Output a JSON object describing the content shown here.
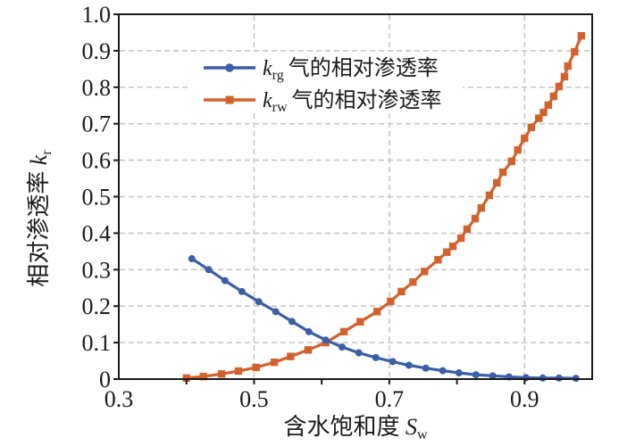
{
  "colors": {
    "gas_series": "#3A5FA8",
    "water_series": "#D2612C",
    "grid": "#c6c6c6",
    "axis": "#1a1a1a",
    "background": "#ffffff"
  },
  "legend": {
    "items": [
      {
        "k": "k",
        "sub": "rg",
        "label": "气的相对渗透率",
        "marker": "circle",
        "color": "#3A5FA8"
      },
      {
        "k": "k",
        "sub": "rw",
        "label": "气的相对渗透率",
        "marker": "square",
        "color": "#D2612C"
      }
    ]
  },
  "axes": {
    "x_title": {
      "text": "含水饱和度 ",
      "sym": "S",
      "sub": "w"
    },
    "y_title": {
      "text": "相对渗透率 ",
      "sym": "k",
      "sub": "r"
    }
  },
  "chart_data": {
    "type": "line",
    "title": "",
    "xlabel": "含水饱和度 Sw",
    "ylabel": "相对渗透率 kr",
    "xlim": [
      0.3,
      1.0
    ],
    "ylim": [
      0,
      1.0
    ],
    "xticks": {
      "labels": [
        "0.3",
        "0.5",
        "0.7",
        "0.9"
      ],
      "values": [
        0.3,
        0.5,
        0.7,
        0.9
      ]
    },
    "xtick_marks": [
      0.4,
      0.5,
      0.6,
      0.7,
      0.8,
      0.9
    ],
    "yticks": {
      "labels": [
        "1.0",
        "0.9",
        "0.8",
        "0.7",
        "0.6",
        "0.5",
        "0.4",
        "0.3",
        "0.2",
        "0.1",
        "0"
      ],
      "values": [
        1.0,
        0.9,
        0.8,
        0.7,
        0.6,
        0.5,
        0.4,
        0.3,
        0.2,
        0.1,
        0
      ]
    },
    "grid": {
      "style": "dashed",
      "x_values": [
        0.5,
        0.7,
        0.9
      ],
      "y_values": [
        0.1,
        0.2,
        0.3,
        0.4,
        0.5,
        0.6,
        0.7,
        0.8,
        0.9
      ]
    },
    "legend_position": "upper-left",
    "series": [
      {
        "name": "krg 气的相对渗透率",
        "marker": "circle",
        "color": "#3A5FA8",
        "x": [
          0.408,
          0.433,
          0.457,
          0.482,
          0.507,
          0.532,
          0.556,
          0.581,
          0.606,
          0.63,
          0.655,
          0.68,
          0.705,
          0.729,
          0.754,
          0.779,
          0.803,
          0.828,
          0.853,
          0.877,
          0.902,
          0.927,
          0.951,
          0.976
        ],
        "y": [
          0.33,
          0.3,
          0.27,
          0.24,
          0.212,
          0.185,
          0.158,
          0.13,
          0.107,
          0.088,
          0.072,
          0.059,
          0.048,
          0.038,
          0.03,
          0.023,
          0.017,
          0.012,
          0.009,
          0.006,
          0.004,
          0.003,
          0.003,
          0.002
        ]
      },
      {
        "name": "krw 气的相对渗透率",
        "marker": "square",
        "color": "#D2612C",
        "x": [
          0.4,
          0.425,
          0.452,
          0.477,
          0.503,
          0.53,
          0.554,
          0.58,
          0.606,
          0.633,
          0.657,
          0.682,
          0.702,
          0.718,
          0.735,
          0.752,
          0.772,
          0.785,
          0.794,
          0.806,
          0.815,
          0.827,
          0.836,
          0.848,
          0.859,
          0.868,
          0.881,
          0.89,
          0.9,
          0.91,
          0.921,
          0.928,
          0.935,
          0.943,
          0.951,
          0.959,
          0.964,
          0.974,
          0.984
        ],
        "y": [
          0.003,
          0.007,
          0.014,
          0.022,
          0.032,
          0.046,
          0.062,
          0.08,
          0.1,
          0.13,
          0.157,
          0.185,
          0.213,
          0.24,
          0.266,
          0.295,
          0.327,
          0.348,
          0.364,
          0.386,
          0.411,
          0.44,
          0.469,
          0.504,
          0.538,
          0.567,
          0.597,
          0.628,
          0.66,
          0.69,
          0.715,
          0.731,
          0.751,
          0.775,
          0.802,
          0.829,
          0.858,
          0.897,
          0.941
        ]
      }
    ]
  }
}
